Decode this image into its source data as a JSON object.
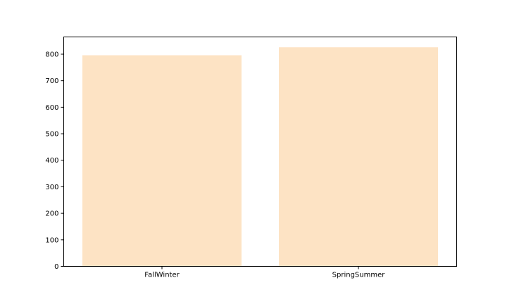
{
  "chart_data": {
    "type": "bar",
    "categories": [
      "FallWinter",
      "SpringSummer"
    ],
    "values": [
      796,
      826
    ],
    "title": "",
    "xlabel": "",
    "ylabel": "",
    "ylim": [
      0,
      865
    ],
    "yticks": [
      0,
      100,
      200,
      300,
      400,
      500,
      600,
      700,
      800
    ],
    "grid": false,
    "bar_color": "#fde3c4"
  }
}
